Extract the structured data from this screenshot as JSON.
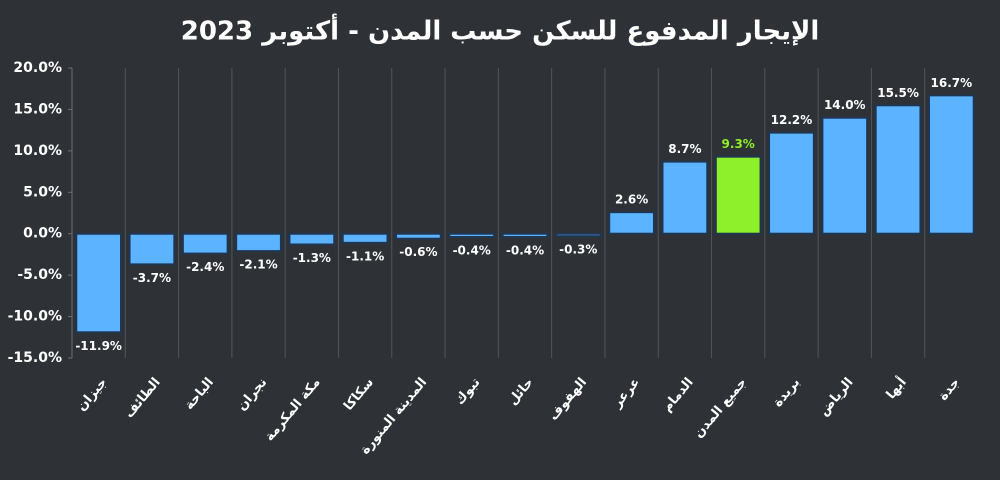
{
  "chart_data": {
    "type": "bar",
    "title": "الإيجار المدفوع للسكن حسب المدن - أكتوبر 2023",
    "categories": [
      "جيزان",
      "الطائف",
      "الباحة",
      "نجران",
      "مكة المكرمة",
      "سكاكا",
      "المدينة المنورة",
      "تبوك",
      "حائل",
      "الهفوف",
      "عرعر",
      "الدمام",
      "جميع المدن",
      "بريدة",
      "الرياض",
      "أبها",
      "جدة"
    ],
    "values": [
      -11.9,
      -3.7,
      -2.4,
      -2.1,
      -1.3,
      -1.1,
      -0.6,
      -0.4,
      -0.4,
      -0.3,
      2.6,
      8.7,
      9.3,
      12.2,
      14.0,
      15.5,
      16.7
    ],
    "value_labels": [
      "-11.9%",
      "-3.7%",
      "-2.4%",
      "-2.1%",
      "-1.3%",
      "-1.1%",
      "-0.6%",
      "-0.4%",
      "-0.4%",
      "-0.3%",
      "2.6%",
      "8.7%",
      "9.3%",
      "12.2%",
      "14.0%",
      "15.5%",
      "16.7%"
    ],
    "color": "#5cb3ff",
    "colors": [
      "#5cb3ff",
      "#5cb3ff",
      "#5cb3ff",
      "#5cb3ff",
      "#5cb3ff",
      "#5cb3ff",
      "#5cb3ff",
      "#5cb3ff",
      "#5cb3ff",
      "#5cb3ff",
      "#5cb3ff",
      "#5cb3ff",
      "#8ef02a",
      "#5cb3ff",
      "#5cb3ff",
      "#5cb3ff",
      "#5cb3ff"
    ],
    "ylim": [
      -15,
      20
    ],
    "yticks": [
      {
        "value": -15,
        "label": "-15.0%"
      },
      {
        "value": -10,
        "label": "-10.0%"
      },
      {
        "value": -5,
        "label": "-5.0%"
      },
      {
        "value": 0,
        "label": "0.0%"
      },
      {
        "value": 5,
        "label": "5.0%"
      },
      {
        "value": 10,
        "label": "10.0%"
      },
      {
        "value": 15,
        "label": "15.0%"
      },
      {
        "value": 20,
        "label": "20.0%"
      }
    ],
    "grid": false
  }
}
